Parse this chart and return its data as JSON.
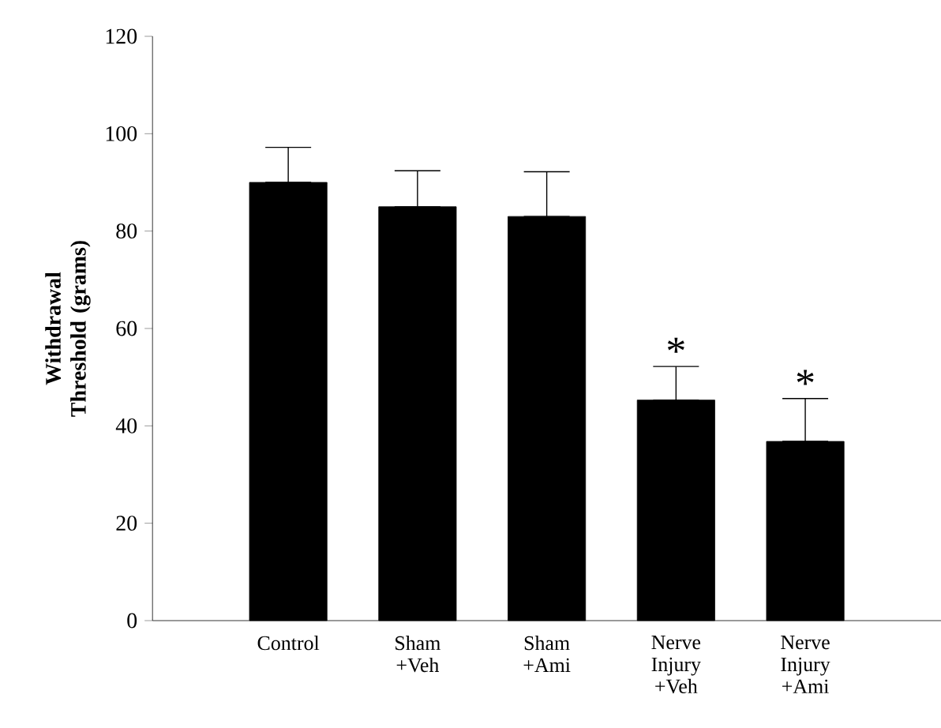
{
  "chart_data": {
    "type": "bar",
    "ylabel": "Withdrawal Threshold (grams)",
    "categories": [
      "Control",
      "Sham +Veh",
      "Sham +Ami",
      "Nerve Injury +Veh",
      "Nerve Injury +Ami"
    ],
    "values": [
      90,
      85,
      83,
      45.3,
      36.8
    ],
    "errors": [
      [
        90,
        97.2
      ],
      [
        85,
        92.4
      ],
      [
        83,
        92.2
      ],
      [
        45.3,
        52.2
      ],
      [
        36.8,
        45.6
      ]
    ],
    "color": "#000000",
    "ylim": [
      0,
      120
    ],
    "yticks": [
      0,
      20,
      40,
      60,
      80,
      100,
      120
    ],
    "annotations": [
      {
        "text": "*",
        "x": "Nerve Injury +Veh",
        "y": 52.2
      },
      {
        "text": "*",
        "x": "Nerve Injury +Ami",
        "y": 45.6
      }
    ]
  }
}
